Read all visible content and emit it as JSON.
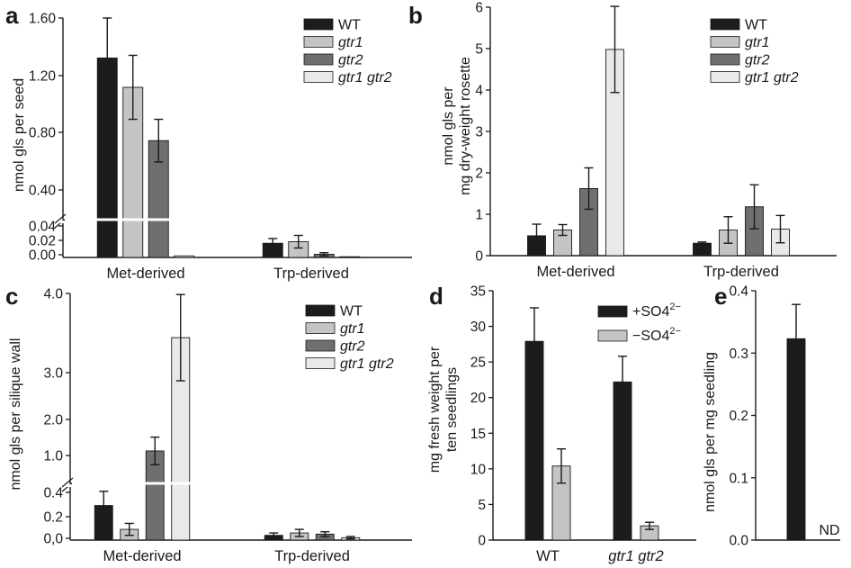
{
  "colors": {
    "WT": "#1c1c1c",
    "gtr1": "#c4c4c4",
    "gtr2": "#6f6f6f",
    "gtr1 gtr2": "#e9e9e9",
    "+SO4": "#1c1c1c",
    "-SO4": "#c4c4c4"
  },
  "chart_data": [
    {
      "id": "a",
      "panel_label": "a",
      "type": "bar",
      "ylabel": "nmol gls per seed",
      "categories": [
        "Met-derived",
        "Trp-derived"
      ],
      "series": [
        {
          "name": "WT",
          "values": [
            1.3,
            0.018
          ],
          "errors": [
            0.3,
            0.006
          ]
        },
        {
          "name": "gtr1",
          "values": [
            1.08,
            0.02
          ],
          "errors": [
            0.24,
            0.008
          ]
        },
        {
          "name": "gtr2",
          "values": [
            0.68,
            0.004
          ],
          "errors": [
            0.16,
            0.002
          ]
        },
        {
          "name": "gtr1 gtr2",
          "values": [
            0.002,
            0.0
          ],
          "errors": [
            0,
            0
          ]
        }
      ],
      "axis_break": true,
      "yticks": [
        "1.60",
        "1.20",
        "0.80",
        "0.40",
        "0.04",
        "0.02",
        "0.00"
      ],
      "legend_location": "top-right"
    },
    {
      "id": "b",
      "panel_label": "b",
      "type": "bar",
      "ylabel": "nmol gls per mg dry-weight rosette",
      "ylabel_lines": [
        "nmol gls per",
        "mg dry-weight rosette"
      ],
      "categories": [
        "Met-derived",
        "Trp-derived"
      ],
      "series": [
        {
          "name": "WT",
          "values": [
            0.48,
            0.3
          ],
          "errors": [
            0.28,
            0.03
          ]
        },
        {
          "name": "gtr1",
          "values": [
            0.62,
            0.62
          ],
          "errors": [
            0.13,
            0.32
          ]
        },
        {
          "name": "gtr2",
          "values": [
            1.62,
            1.18
          ],
          "errors": [
            0.5,
            0.53
          ]
        },
        {
          "name": "gtr1 gtr2",
          "values": [
            4.98,
            0.64
          ],
          "errors": [
            1.04,
            0.33
          ]
        }
      ],
      "ylim": [
        0,
        6
      ],
      "yticks": [
        "0",
        "1",
        "2",
        "3",
        "4",
        "5",
        "6"
      ],
      "legend_location": "top-right"
    },
    {
      "id": "c",
      "panel_label": "c",
      "type": "bar",
      "ylabel": "nmol gls per silique wall",
      "categories": [
        "Met-derived",
        "Trp-derived"
      ],
      "series": [
        {
          "name": "WT",
          "values": [
            0.29,
            0.04
          ],
          "errors": [
            0.13,
            0.02
          ]
        },
        {
          "name": "gtr1",
          "values": [
            0.09,
            0.06
          ],
          "errors": [
            0.05,
            0.03
          ]
        },
        {
          "name": "gtr2",
          "values": [
            1.15,
            0.05
          ],
          "errors": [
            0.25,
            0.02
          ]
        },
        {
          "name": "gtr1 gtr2",
          "values": [
            3.2,
            0.02
          ],
          "errors": [
            0.78,
            0.01
          ]
        }
      ],
      "axis_break": true,
      "yticks": [
        "4.0",
        "3.0",
        "2.0",
        "1.0",
        "0.4",
        "0.2",
        "0,0"
      ],
      "legend_location": "top-right"
    },
    {
      "id": "d",
      "panel_label": "d",
      "type": "bar",
      "ylabel": "mg fresh weight per ten seedlings",
      "ylabel_lines": [
        "mg fresh weight per",
        "ten seedlings"
      ],
      "categories": [
        "WT",
        "gtr1 gtr2"
      ],
      "series": [
        {
          "name": "+SO4 2−",
          "values": [
            27.9,
            22.2
          ],
          "errors": [
            4.7,
            3.6
          ]
        },
        {
          "name": "−SO4 2−",
          "values": [
            10.4,
            2.0
          ],
          "errors": [
            2.4,
            0.5
          ]
        }
      ],
      "ylim": [
        0,
        35
      ],
      "yticks": [
        "0",
        "5",
        "10",
        "15",
        "20",
        "25",
        "30",
        "35"
      ],
      "legend_location": "top-right"
    },
    {
      "id": "e",
      "panel_label": "e",
      "type": "bar",
      "ylabel": "nmol gls per mg seedling",
      "categories": [
        "",
        ""
      ],
      "series": [
        {
          "name": "",
          "values": [
            0.323,
            null
          ],
          "errors": [
            0.055,
            null
          ]
        }
      ],
      "annotations": [
        "ND"
      ],
      "ylim": [
        0,
        0.4
      ],
      "yticks": [
        "0.0",
        "0.1",
        "0.2",
        "0.3",
        "0.4"
      ]
    }
  ]
}
